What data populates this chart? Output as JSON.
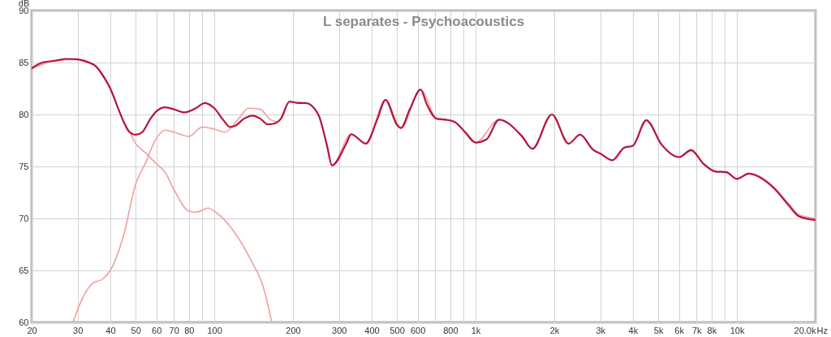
{
  "chart_data": {
    "type": "line",
    "title": "L separates - Psychoacoustics",
    "ylabel": "dB",
    "log": "x",
    "grid": true,
    "marker": "none",
    "line_style": "solid",
    "xlim": [
      20,
      20000
    ],
    "ylim": [
      60,
      90
    ],
    "xticks": [
      20,
      30,
      40,
      50,
      60,
      70,
      80,
      {
        "value": 90,
        "label": null
      },
      100,
      200,
      300,
      400,
      500,
      600,
      {
        "value": 700,
        "label": null
      },
      800,
      {
        "value": 900,
        "label": null
      },
      {
        "value": 1000,
        "label": "1k"
      },
      {
        "value": 2000,
        "label": "2k"
      },
      {
        "value": 3000,
        "label": "3k"
      },
      {
        "value": 4000,
        "label": "4k"
      },
      {
        "value": 5000,
        "label": "5k"
      },
      {
        "value": 6000,
        "label": "6k"
      },
      {
        "value": 7000,
        "label": "7k"
      },
      {
        "value": 8000,
        "label": "8k"
      },
      {
        "value": 9000,
        "label": null
      },
      {
        "value": 10000,
        "label": "10k"
      },
      {
        "value": 20000,
        "label": "20.0k"
      }
    ],
    "xlabel": "Hz",
    "yticks": [
      60,
      65,
      70,
      75,
      80,
      85,
      90
    ],
    "series": [
      {
        "color": "#f0a0a0",
        "x": [
          20,
          25,
          30,
          35,
          40,
          43,
          45,
          47.5,
          50,
          54.7,
          60,
          65,
          70,
          80,
          85,
          95,
          100,
          120,
          138,
          154,
          166
        ],
        "values": [
          84.4,
          85.2,
          85.3,
          84.7,
          82.5,
          80.5,
          79.3,
          78.3,
          77.2,
          76.3,
          75.25,
          74.4,
          72.8,
          70.7,
          70.6,
          71.0,
          70.7,
          68.6,
          66.0,
          63.4,
          60
        ]
      },
      {
        "color": "#f0a0a0",
        "x": [
          28.8,
          31,
          34,
          37.5,
          40,
          45,
          50,
          54.7,
          60,
          65,
          70,
          80,
          90,
          100,
          110,
          123,
          135,
          150,
          164,
          175,
          194,
          224,
          250,
          270,
          282,
          334,
          380,
          452,
          518,
          616,
          709,
          830,
          1000,
          1230,
          1505,
          1649,
          1958,
          2270,
          2510,
          2820,
          3020,
          3340,
          3700,
          4000,
          4500,
          5150,
          6000,
          6680,
          7450,
          8290,
          9100,
          10000,
          11100,
          12700,
          14000,
          15800,
          17300,
          20000
        ],
        "values": [
          60,
          62.1,
          63.7,
          64.2,
          65.0,
          68.4,
          73.3,
          75.4,
          77.7,
          78.5,
          78.3,
          77.9,
          78.8,
          78.6,
          78.3,
          79.5,
          80.6,
          80.5,
          79.5,
          79.3,
          81.2,
          81.1,
          80.0,
          77.0,
          75.1,
          78.1,
          77.2,
          81.4,
          78.7,
          82.4,
          79.6,
          79.3,
          77.3,
          79.5,
          77.9,
          76.7,
          80.0,
          77.2,
          78.05,
          76.6,
          76.2,
          75.6,
          76.8,
          77.0,
          79.45,
          77.1,
          75.9,
          76.65,
          75.3,
          74.55,
          74.5,
          73.85,
          74.35,
          73.8,
          72.9,
          71.4,
          70.35,
          70.0
        ]
      },
      {
        "color": "#b5153f",
        "x": [
          20,
          22,
          25,
          27,
          30,
          33,
          35,
          38,
          40,
          43,
          45,
          47,
          50,
          53,
          57,
          60,
          65,
          70,
          77,
          85,
          92,
          100,
          108,
          115,
          120,
          130,
          140,
          150,
          160,
          168,
          180,
          194,
          210,
          224,
          250,
          270,
          282,
          320,
          334,
          380,
          420,
          452,
          500,
          518,
          560,
          616,
          650,
          709,
          770,
          830,
          920,
          1000,
          1100,
          1230,
          1505,
          1649,
          1958,
          2270,
          2510,
          2820,
          3020,
          3340,
          3700,
          4000,
          4500,
          5150,
          6000,
          6680,
          7450,
          8290,
          9100,
          10000,
          11100,
          12700,
          14000,
          15800,
          17300,
          20000
        ],
        "values": [
          84.45,
          85.0,
          85.2,
          85.35,
          85.3,
          85.0,
          84.7,
          83.5,
          82.5,
          80.5,
          79.3,
          78.4,
          78.05,
          78.3,
          79.6,
          80.3,
          80.7,
          80.5,
          80.2,
          80.6,
          81.1,
          80.6,
          79.5,
          78.8,
          78.9,
          79.6,
          79.9,
          79.6,
          79.05,
          79.1,
          79.6,
          81.25,
          81.1,
          81.1,
          80.0,
          77.0,
          75.1,
          77.2,
          78.1,
          77.2,
          79.5,
          81.4,
          79.0,
          78.7,
          80.5,
          82.4,
          81.0,
          79.6,
          79.5,
          79.3,
          78.2,
          77.3,
          77.6,
          79.5,
          77.9,
          76.7,
          80.0,
          77.2,
          78.05,
          76.6,
          76.2,
          75.6,
          76.8,
          77.0,
          79.45,
          77.1,
          75.9,
          76.55,
          75.25,
          74.5,
          74.45,
          73.8,
          74.3,
          73.7,
          72.8,
          71.25,
          70.2,
          69.85
        ]
      }
    ]
  }
}
